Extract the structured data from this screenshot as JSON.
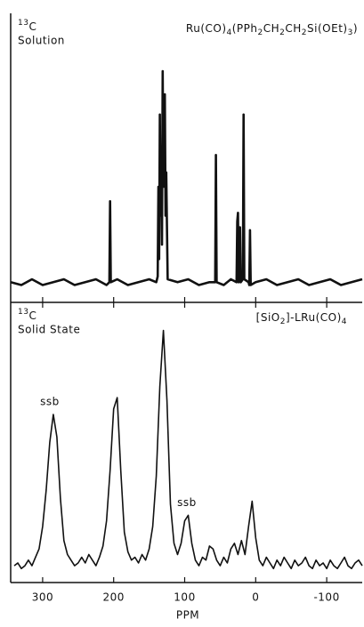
{
  "chart_data": [
    {
      "type": "line",
      "nucleus": "13C",
      "subtitle": "Solution",
      "title": "Ru(CO)4(PPh2CH2CH2Si(OEt)3)",
      "color": "#111111",
      "x": [
        345,
        330,
        315,
        300,
        285,
        270,
        255,
        240,
        225,
        210,
        206,
        205,
        204,
        195,
        180,
        165,
        150,
        140,
        138,
        137,
        136,
        135,
        134,
        133,
        132,
        131,
        130,
        129,
        128,
        127,
        126,
        125,
        124,
        110,
        95,
        80,
        65,
        57,
        56,
        55,
        45,
        35,
        27,
        26,
        25,
        24,
        23,
        22,
        21,
        18,
        17,
        16,
        10,
        9,
        8,
        7,
        0,
        -15,
        -30,
        -45,
        -60,
        -75,
        -90,
        -105,
        -120,
        -135,
        -150
      ],
      "values": [
        7,
        6,
        8,
        6,
        7,
        8,
        6,
        7,
        8,
        6,
        7,
        35,
        7,
        8,
        6,
        7,
        8,
        7,
        9,
        40,
        15,
        65,
        30,
        50,
        20,
        80,
        40,
        60,
        72,
        30,
        45,
        26,
        8,
        7,
        8,
        6,
        7,
        7,
        51,
        7,
        6,
        8,
        7,
        28,
        31,
        7,
        9,
        26,
        7,
        8,
        65,
        8,
        7,
        6,
        25,
        6,
        7,
        8,
        6,
        7,
        8,
        6,
        7,
        8,
        6,
        7,
        8
      ],
      "xlim": [
        345,
        -150
      ],
      "xticks": [
        300,
        200,
        100,
        0,
        -100
      ],
      "ylim": [
        0,
        100
      ]
    },
    {
      "type": "line",
      "nucleus": "13C",
      "subtitle": "Solid State",
      "title": "[SiO2]-LRu(CO)4",
      "xlabel": "PPM",
      "color": "#111111",
      "x": [
        340,
        335,
        330,
        325,
        320,
        315,
        310,
        305,
        300,
        295,
        290,
        285,
        280,
        275,
        270,
        265,
        260,
        255,
        250,
        245,
        240,
        235,
        230,
        225,
        220,
        215,
        210,
        205,
        200,
        195,
        190,
        185,
        180,
        175,
        170,
        165,
        160,
        155,
        150,
        145,
        140,
        135,
        130,
        125,
        120,
        115,
        110,
        105,
        100,
        95,
        90,
        85,
        80,
        75,
        70,
        65,
        60,
        55,
        50,
        45,
        40,
        35,
        30,
        25,
        20,
        15,
        10,
        5,
        0,
        -5,
        -10,
        -15,
        -20,
        -25,
        -30,
        -35,
        -40,
        -45,
        -50,
        -55,
        -60,
        -65,
        -70,
        -75,
        -80,
        -85,
        -90,
        -95,
        -100,
        -105,
        -110,
        -115,
        -120,
        -125,
        -130,
        -135,
        -140,
        -145,
        -150
      ],
      "values": [
        6,
        7,
        5,
        6,
        8,
        6,
        9,
        12,
        20,
        33,
        50,
        60,
        52,
        30,
        15,
        10,
        8,
        6,
        7,
        9,
        7,
        10,
        8,
        6,
        9,
        13,
        22,
        40,
        62,
        66,
        40,
        18,
        11,
        8,
        9,
        7,
        10,
        8,
        12,
        20,
        38,
        70,
        90,
        65,
        28,
        14,
        10,
        14,
        22,
        24,
        14,
        8,
        6,
        9,
        8,
        13,
        12,
        8,
        6,
        9,
        7,
        12,
        14,
        10,
        15,
        10,
        20,
        29,
        16,
        8,
        6,
        9,
        7,
        5,
        8,
        6,
        9,
        7,
        5,
        8,
        6,
        7,
        9,
        6,
        5,
        8,
        6,
        7,
        5,
        8,
        6,
        5,
        7,
        9,
        6,
        5,
        7,
        8,
        6
      ],
      "annotations": [
        {
          "text": "ssb",
          "x": 290,
          "y": 60
        },
        {
          "text": "ssb",
          "x": 97,
          "y": 24
        }
      ],
      "xlim": [
        345,
        -150
      ],
      "xticks": [
        300,
        200,
        100,
        0,
        -100
      ],
      "ylim": [
        0,
        100
      ]
    }
  ]
}
